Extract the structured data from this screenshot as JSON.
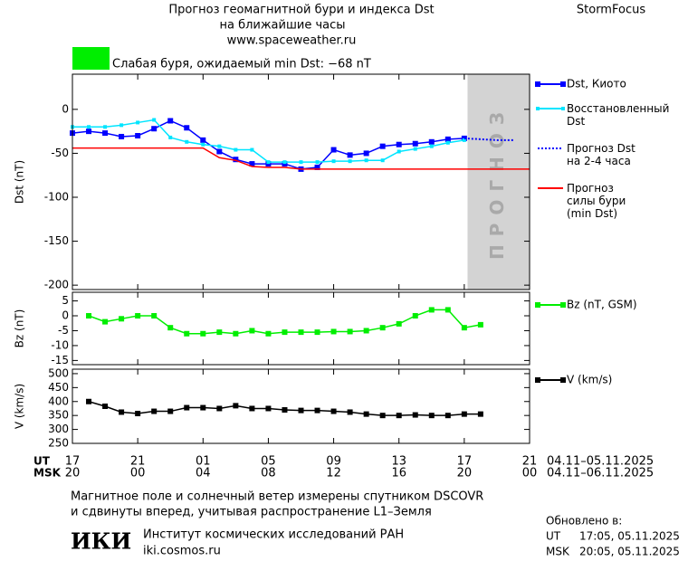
{
  "header": {
    "title_line1": "Прогноз геомагнитной бури и индекса Dst",
    "title_line2": "на ближайшие часы",
    "url": "www.spaceweather.ru",
    "brand": "StormFocus"
  },
  "status": {
    "text": "Слабая буря, ожидаемый min Dst: −68 nT",
    "color": "#00ee00"
  },
  "time_axis": {
    "xlim": [
      0,
      28
    ],
    "rows": [
      {
        "name": "UT",
        "range": "04.11–05.11.2025",
        "ticks": [
          {
            "value": 0,
            "label": "17"
          },
          {
            "value": 4,
            "label": "21"
          },
          {
            "value": 8,
            "label": "01"
          },
          {
            "value": 12,
            "label": "05"
          },
          {
            "value": 16,
            "label": "09"
          },
          {
            "value": 20,
            "label": "13"
          },
          {
            "value": 24,
            "label": "17"
          },
          {
            "value": 28,
            "label": "21"
          }
        ]
      },
      {
        "name": "MSK",
        "range": "04.11–06.11.2025",
        "ticks": [
          {
            "value": 0,
            "label": "20"
          },
          {
            "value": 4,
            "label": "00"
          },
          {
            "value": 8,
            "label": "04"
          },
          {
            "value": 12,
            "label": "08"
          },
          {
            "value": 16,
            "label": "12"
          },
          {
            "value": 20,
            "label": "16"
          },
          {
            "value": 24,
            "label": "20"
          },
          {
            "value": 28,
            "label": "00"
          }
        ]
      }
    ]
  },
  "chart_data": [
    {
      "type": "line",
      "ylabel": "Dst (nT)",
      "ylim": [
        -205,
        40
      ],
      "yticks": [
        0,
        -50,
        -100,
        -150,
        -200
      ],
      "forecast_region": {
        "xlim": [
          24.2,
          28
        ],
        "label": "ПРОГНОЗ",
        "color": "#d3d3d3"
      },
      "series": [
        {
          "name": "Dst, Киото",
          "color": "#0000ff",
          "marker": "square",
          "style": "solid",
          "x": [
            0,
            1,
            2,
            3,
            4,
            5,
            6,
            7,
            8,
            9,
            10,
            11,
            12,
            13,
            14,
            15,
            16,
            17,
            18,
            19,
            20,
            21,
            22,
            23,
            24
          ],
          "values": [
            -27,
            -25,
            -27,
            -31,
            -30,
            -22,
            -13,
            -21,
            -35,
            -48,
            -57,
            -62,
            -62,
            -62,
            -68,
            -66,
            -46,
            -52,
            -50,
            -42,
            -40,
            -39,
            -37,
            -34,
            -33
          ]
        },
        {
          "name": "Восстановленный\nDst",
          "color": "#00e5ff",
          "marker": "small-square",
          "style": "solid",
          "x": [
            0,
            1,
            2,
            3,
            4,
            5,
            6,
            7,
            8,
            9,
            10,
            11,
            12,
            13,
            14,
            15,
            16,
            17,
            18,
            19,
            20,
            21,
            22,
            23,
            24
          ],
          "values": [
            -20,
            -20,
            -20,
            -18,
            -15,
            -12,
            -32,
            -37,
            -40,
            -42,
            -46,
            -46,
            -60,
            -60,
            -60,
            -60,
            -59,
            -59,
            -58,
            -58,
            -48,
            -45,
            -42,
            -38,
            -35
          ]
        },
        {
          "name": "Прогноз Dst\nна 2-4 часа",
          "color": "#0000ff",
          "marker": "none",
          "style": "dotted",
          "x": [
            24,
            25,
            26,
            27
          ],
          "values": [
            -33,
            -34,
            -35,
            -35
          ]
        },
        {
          "name": "Прогноз\nсилы бури\n(min Dst)",
          "color": "#ff0000",
          "marker": "none",
          "style": "solid",
          "x": [
            0,
            8,
            9,
            10,
            11,
            12,
            13,
            14,
            28
          ],
          "values": [
            -44,
            -44,
            -55,
            -58,
            -65,
            -66,
            -66,
            -68,
            -68
          ]
        }
      ]
    },
    {
      "type": "line",
      "ylabel": "Bz (nT)",
      "ylim": [
        -16.4,
        7.9
      ],
      "yticks": [
        5,
        0,
        -5,
        -10,
        -15
      ],
      "series": [
        {
          "name": "Bz (nT, GSM)",
          "color": "#00ee00",
          "marker": "square",
          "style": "solid",
          "x": [
            1,
            2,
            3,
            4,
            5,
            6,
            7,
            8,
            9,
            10,
            11,
            12,
            13,
            14,
            15,
            16,
            17,
            18,
            19,
            20,
            21,
            22,
            23,
            24,
            25
          ],
          "values": [
            0,
            -2,
            -1,
            0,
            0,
            -4,
            -6,
            -6,
            -5.5,
            -6,
            -5,
            -6,
            -5.5,
            -5.5,
            -5.5,
            -5.3,
            -5.3,
            -5,
            -4,
            -2.7,
            0,
            2,
            2,
            -4,
            -3
          ]
        }
      ]
    },
    {
      "type": "line",
      "ylabel": "V (km/s)",
      "ylim": [
        250,
        516
      ],
      "yticks": [
        500,
        450,
        400,
        350,
        300,
        250
      ],
      "series": [
        {
          "name": "V (km/s)",
          "color": "#000000",
          "marker": "square",
          "style": "solid",
          "x": [
            1,
            2,
            3,
            4,
            5,
            6,
            7,
            8,
            9,
            10,
            11,
            12,
            13,
            14,
            15,
            16,
            17,
            18,
            19,
            20,
            21,
            22,
            23,
            24,
            25
          ],
          "values": [
            400,
            383,
            362,
            357,
            365,
            365,
            378,
            378,
            375,
            385,
            375,
            375,
            370,
            368,
            368,
            365,
            362,
            355,
            350,
            350,
            352,
            350,
            350,
            355,
            355
          ]
        }
      ]
    }
  ],
  "note": [
    "Магнитное поле и солнечный ветер измерены спутником DSCOVR",
    "и сдвинуты вперед, учитывая распространение L1–Земля"
  ],
  "institute": {
    "logo": "ИКИ",
    "name": "Институт космических исследований РАН",
    "url": "iki.cosmos.ru"
  },
  "updated": {
    "title": "Обновлено в:",
    "rows": [
      {
        "zone": "UT",
        "time": "17:05, 05.11.2025"
      },
      {
        "zone": "MSK",
        "time": "20:05, 05.11.2025"
      }
    ]
  }
}
